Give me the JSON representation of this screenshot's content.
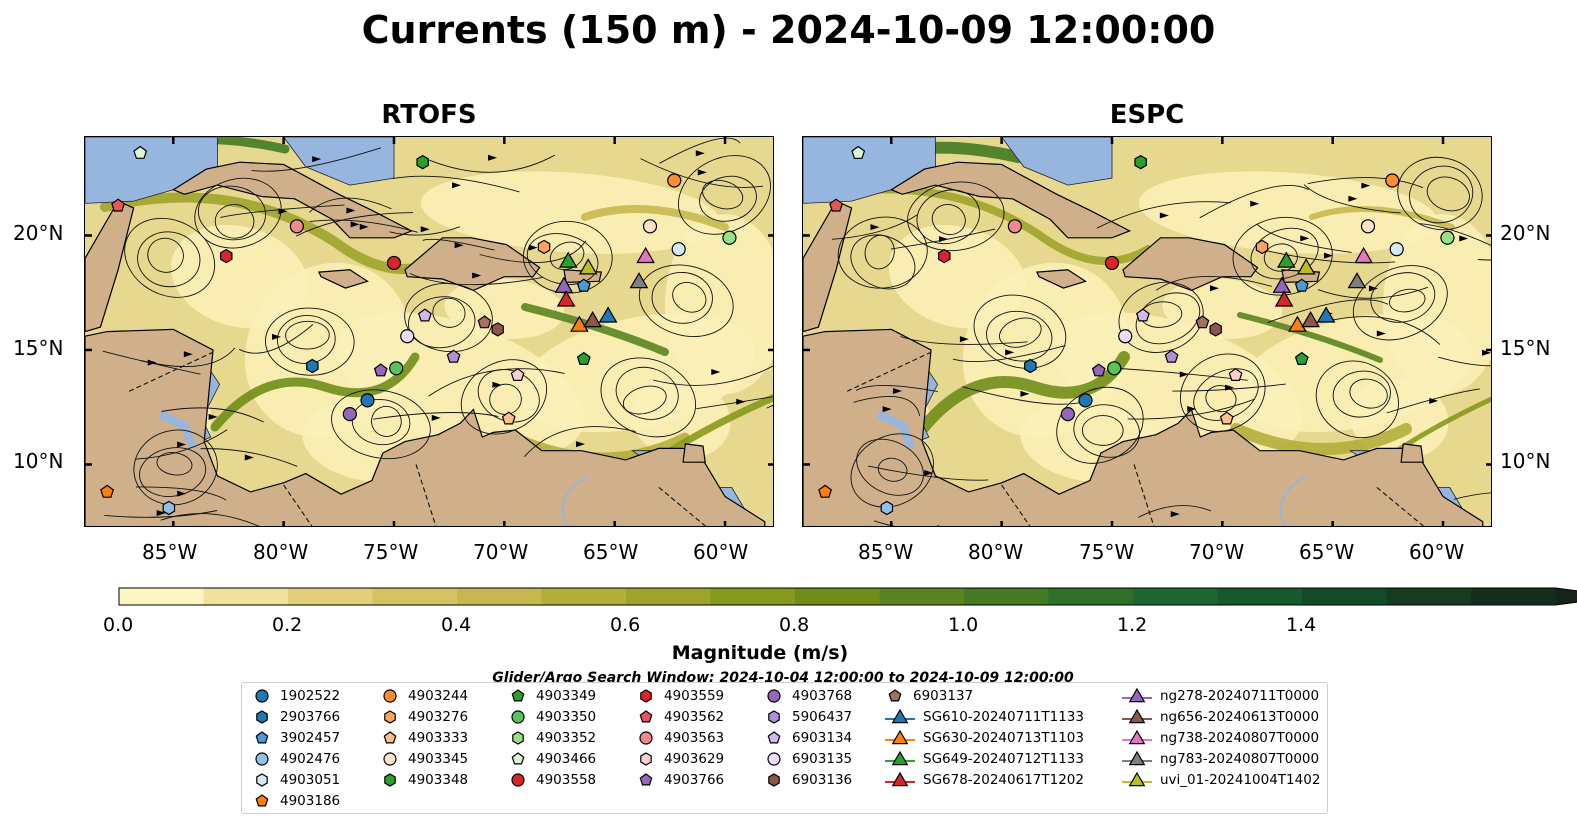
{
  "title": "Currents (150 m) - 2024-10-09 12:00:00",
  "panels": [
    {
      "title": "RTOFS"
    },
    {
      "title": "ESPC"
    }
  ],
  "axes": {
    "lon_ticks": [
      "85°W",
      "80°W",
      "75°W",
      "70°W",
      "65°W",
      "60°W"
    ],
    "lat_ticks": [
      "20°N",
      "15°N",
      "10°N"
    ]
  },
  "colorbar": {
    "label": "Magnitude (m/s)",
    "tick_labels": [
      "0.0",
      "0.2",
      "0.4",
      "0.6",
      "0.8",
      "1.0",
      "1.2",
      "1.4"
    ],
    "colors": [
      "#fdf6c3",
      "#f0e29a",
      "#e1cf79",
      "#d4c263",
      "#c6b84f",
      "#b3ae3a",
      "#9ea42a",
      "#86991c",
      "#6f8d18",
      "#5a8420",
      "#447a22",
      "#2f6f29",
      "#1e6530",
      "#175a2c",
      "#154a26",
      "#143c20",
      "#142f1c",
      "#15241a"
    ]
  },
  "search_window": "Glider/Argo Search Window: 2024-10-04 12:00:00 to 2024-10-09 12:00:00",
  "legend": {
    "columns": [
      [
        {
          "label": "1902522",
          "marker": "circle",
          "color": "#1f77b4"
        },
        {
          "label": "2903766",
          "marker": "hexagon",
          "color": "#1f77b4"
        },
        {
          "label": "3902457",
          "marker": "pentagon",
          "color": "#4a9ad6"
        },
        {
          "label": "4902476",
          "marker": "circle",
          "color": "#8ec0ea"
        },
        {
          "label": "4903051",
          "marker": "hexagon",
          "color": "#d6e9f8"
        },
        {
          "label": "4903186",
          "marker": "pentagon",
          "color": "#ff7f0e"
        }
      ],
      [
        {
          "label": "4903244",
          "marker": "circle",
          "color": "#ff8c2e"
        },
        {
          "label": "4903276",
          "marker": "hexagon",
          "color": "#ffa35c"
        },
        {
          "label": "4903333",
          "marker": "pentagon",
          "color": "#ffbf8a"
        },
        {
          "label": "4903345",
          "marker": "circle",
          "color": "#ffe2c8"
        },
        {
          "label": "4903348",
          "marker": "hexagon",
          "color": "#2ca02c"
        }
      ],
      [
        {
          "label": "4903349",
          "marker": "pentagon",
          "color": "#2ca02c"
        },
        {
          "label": "4903350",
          "marker": "circle",
          "color": "#57c457"
        },
        {
          "label": "4903352",
          "marker": "hexagon",
          "color": "#98df8a"
        },
        {
          "label": "4903466",
          "marker": "pentagon",
          "color": "#d9f5d1"
        },
        {
          "label": "4903558",
          "marker": "circle",
          "color": "#d62728"
        }
      ],
      [
        {
          "label": "4903559",
          "marker": "hexagon",
          "color": "#d62728"
        },
        {
          "label": "4903562",
          "marker": "pentagon",
          "color": "#e8565a"
        },
        {
          "label": "4903563",
          "marker": "circle",
          "color": "#f08a8d"
        },
        {
          "label": "4903629",
          "marker": "hexagon",
          "color": "#fbcfd0"
        },
        {
          "label": "4903766",
          "marker": "pentagon",
          "color": "#9467bd"
        }
      ],
      [
        {
          "label": "4903768",
          "marker": "circle",
          "color": "#9467bd"
        },
        {
          "label": "5906437",
          "marker": "hexagon",
          "color": "#b18fd8"
        },
        {
          "label": "6903134",
          "marker": "pentagon",
          "color": "#d0b7ee"
        },
        {
          "label": "6903135",
          "marker": "circle",
          "color": "#eddcfb"
        },
        {
          "label": "6903136",
          "marker": "hexagon",
          "color": "#8c564b"
        }
      ],
      [
        {
          "label": "6903137",
          "marker": "pentagon",
          "color": "#a0725f"
        },
        {
          "label": "SG610-20240711T1133",
          "marker": "triangle-line",
          "color": "#1f77b4"
        },
        {
          "label": "SG630-20240713T1103",
          "marker": "triangle-line",
          "color": "#ff7f0e"
        },
        {
          "label": "SG649-20240712T1133",
          "marker": "triangle-line",
          "color": "#2ca02c"
        },
        {
          "label": "SG678-20240617T1202",
          "marker": "triangle-line",
          "color": "#d62728"
        }
      ],
      [
        {
          "label": "ng278-20240711T0000",
          "marker": "triangle-line",
          "color": "#9467bd"
        },
        {
          "label": "ng656-20240613T0000",
          "marker": "triangle-line",
          "color": "#8c564b"
        },
        {
          "label": "ng738-20240807T0000",
          "marker": "triangle-line",
          "color": "#e377c2"
        },
        {
          "label": "ng783-20240807T0000",
          "marker": "triangle-line",
          "color": "#7f7f7f"
        },
        {
          "label": "uvi_01-20241004T1402",
          "marker": "triangle-line",
          "color": "#bcbd22"
        }
      ]
    ]
  }
}
